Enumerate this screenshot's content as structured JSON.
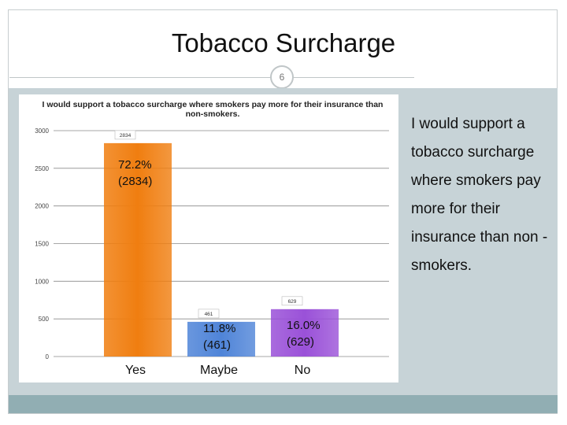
{
  "slide": {
    "title": "Tobacco Surcharge",
    "number": "6",
    "bullet_text": "I would support a tobacco surcharge where smokers pay more for their insurance than non -smokers."
  },
  "colors": {
    "panel": "#c7d3d7",
    "footer": "#91aeb3",
    "yes": "#f07e10",
    "maybe": "#4f84d8",
    "no": "#9a51d8"
  },
  "chart_data": {
    "type": "bar",
    "title": "I would support a tobacco surcharge where smokers pay more for their insurance than non-smokers.",
    "xlabel": "",
    "ylabel": "",
    "categories": [
      "Yes",
      "Maybe",
      "No"
    ],
    "values": [
      2834,
      461,
      629
    ],
    "value_labels": [
      "2834",
      "461",
      "629"
    ],
    "annotations": [
      "72.2%\n(2834)",
      "11.8%\n(461)",
      "16.0%\n(629)"
    ],
    "ylim": [
      0,
      3000
    ],
    "yticks": [
      0,
      500,
      1000,
      1500,
      2000,
      2500,
      3000
    ],
    "bar_colors": [
      "#f07e10",
      "#4f84d8",
      "#9a51d8"
    ],
    "grid": true,
    "legend": "none"
  }
}
